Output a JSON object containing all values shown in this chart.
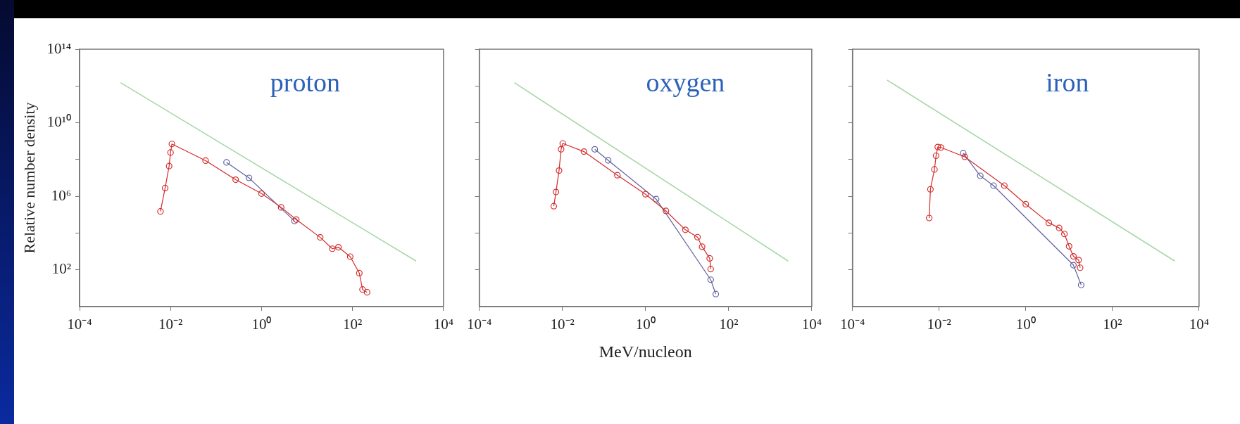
{
  "chart_data": [
    {
      "type": "line",
      "annotations": [
        "proton"
      ],
      "ylabel": "Relative number density",
      "log": "xy",
      "xlim": [
        0.0001,
        10000
      ],
      "ylim": [
        1,
        100000000000000
      ],
      "xticks": [
        {
          "value": 0.0001,
          "label": "10⁻⁴"
        },
        {
          "value": 0.01,
          "label": "10⁻²"
        },
        {
          "value": 1,
          "label": "10⁰"
        },
        {
          "value": 100,
          "label": "10²"
        },
        {
          "value": 10000,
          "label": "10⁴"
        }
      ],
      "yticks": [
        {
          "value": 100,
          "label": "10²"
        },
        {
          "value": 10000,
          "label": null
        },
        {
          "value": 1000000,
          "label": "10⁶"
        },
        {
          "value": 100000000,
          "label": null
        },
        {
          "value": 10000000000,
          "label": "10¹⁰"
        },
        {
          "value": 1000000000000,
          "label": null
        },
        {
          "value": 100000000000000,
          "label": "10¹⁴"
        }
      ],
      "marker": "circle",
      "line_style": "solid",
      "series": [
        {
          "type": "line",
          "marker": "none",
          "color": "#a8d8a8",
          "x": [
            0.0008,
            2500
          ],
          "values": [
            1500000000000,
            300
          ]
        },
        {
          "type": "line",
          "color": "#d42a2a",
          "x": [
            0.006,
            0.0076,
            0.0093,
            0.01,
            0.0107,
            0.059,
            0.27,
            1,
            2.7,
            5.8,
            19.5,
            36,
            49,
            89,
            141,
            166,
            209
          ],
          "values": [
            150000,
            2800000,
            44000000,
            240000000,
            700000000,
            87000000,
            8000000,
            1400000,
            250000,
            54000,
            5800,
            1400,
            1700,
            520,
            66,
            8.5,
            6
          ]
        },
        {
          "type": "line",
          "color": "#6060a0",
          "x": [
            0.17,
            0.53,
            5.3
          ],
          "values": [
            70000000,
            10000000,
            45000
          ]
        }
      ]
    },
    {
      "type": "line",
      "annotations": [
        "oxygen"
      ],
      "xlabel": "MeV/nucleon",
      "log": "xy",
      "xlim": [
        0.0001,
        10000
      ],
      "ylim": [
        1,
        100000000000000
      ],
      "tick_labels": "x",
      "xticks": [
        {
          "value": 0.0001,
          "label": "10⁻⁴"
        },
        {
          "value": 0.01,
          "label": "10⁻²"
        },
        {
          "value": 1,
          "label": "10⁰"
        },
        {
          "value": 100,
          "label": "10²"
        },
        {
          "value": 10000,
          "label": "10⁴"
        }
      ],
      "yticks": [
        {
          "value": 100,
          "label": null
        },
        {
          "value": 10000,
          "label": null
        },
        {
          "value": 1000000,
          "label": null
        },
        {
          "value": 100000000,
          "label": null
        },
        {
          "value": 10000000000,
          "label": null
        },
        {
          "value": 1000000000000,
          "label": null
        },
        {
          "value": 100000000000000,
          "label": null
        }
      ],
      "marker": "circle",
      "line_style": "solid",
      "series": [
        {
          "type": "line",
          "marker": "none",
          "color": "#a8d8a8",
          "x": [
            0.0007,
            2700
          ],
          "values": [
            1500000000000,
            300
          ]
        },
        {
          "type": "line",
          "color": "#d42a2a",
          "x": [
            0.0062,
            0.007,
            0.0083,
            0.0093,
            0.0102,
            0.033,
            0.21,
            1,
            3.1,
            9.1,
            17.8,
            23,
            35,
            37
          ],
          "values": [
            290000,
            1700000,
            25000000,
            360000000,
            750000000,
            270000000,
            14000000,
            1300000,
            160000,
            15000,
            6000,
            1800,
            420,
            110
          ]
        },
        {
          "type": "line",
          "color": "#6060a0",
          "x": [
            0.06,
            0.126,
            1.8,
            37,
            49
          ],
          "values": [
            360000000,
            90000000,
            700000,
            29,
            4.8
          ]
        }
      ]
    },
    {
      "type": "line",
      "annotations": [
        "iron"
      ],
      "log": "xy",
      "xlim": [
        0.0001,
        10000
      ],
      "ylim": [
        1,
        100000000000000
      ],
      "tick_labels": "x",
      "xticks": [
        {
          "value": 0.0001,
          "label": "10⁻⁴"
        },
        {
          "value": 0.01,
          "label": "10⁻²"
        },
        {
          "value": 1,
          "label": "10⁰"
        },
        {
          "value": 100,
          "label": "10²"
        },
        {
          "value": 10000,
          "label": "10⁴"
        }
      ],
      "yticks": [
        {
          "value": 100,
          "label": null
        },
        {
          "value": 10000,
          "label": null
        },
        {
          "value": 1000000,
          "label": null
        },
        {
          "value": 100000000,
          "label": null
        },
        {
          "value": 10000000000,
          "label": null
        },
        {
          "value": 1000000000000,
          "label": null
        },
        {
          "value": 100000000000000,
          "label": null
        }
      ],
      "marker": "circle",
      "line_style": "solid",
      "series": [
        {
          "type": "line",
          "marker": "none",
          "color": "#a8d8a8",
          "x": [
            0.00063,
            2750
          ],
          "values": [
            2100000000000,
            300
          ]
        },
        {
          "type": "line",
          "color": "#d42a2a",
          "x": [
            0.0059,
            0.0063,
            0.0078,
            0.0085,
            0.0093,
            0.011,
            0.039,
            0.32,
            1,
            3.4,
            5.9,
            7.8,
            10,
            12.6,
            16.6,
            18
          ],
          "values": [
            66000,
            2400000,
            29000000,
            160000000,
            480000000,
            450000000,
            140000000,
            3800000,
            370000,
            36000,
            19000,
            8900,
            1900,
            540,
            340,
            130
          ]
        },
        {
          "type": "line",
          "color": "#6060a0",
          "x": [
            0.036,
            0.089,
            0.18,
            12.6,
            19
          ],
          "values": [
            220000000,
            13000000,
            3800000,
            180,
            15
          ]
        }
      ]
    }
  ]
}
